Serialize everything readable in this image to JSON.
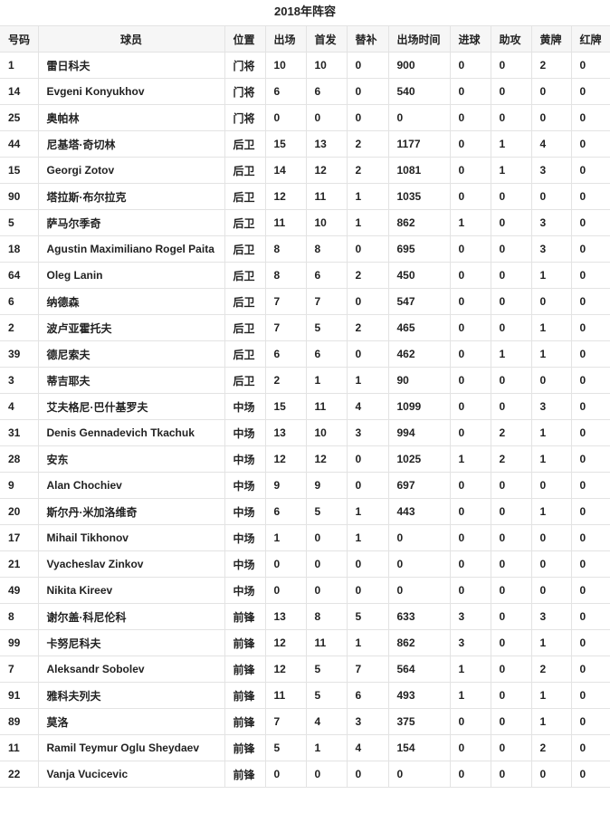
{
  "title": "2018年阵容",
  "columns": [
    "号码",
    "球员",
    "位置",
    "出场",
    "首发",
    "替补",
    "出场时间",
    "进球",
    "助攻",
    "黄牌",
    "红牌"
  ],
  "rows": [
    [
      "1",
      "雷日科夫",
      "门将",
      "10",
      "10",
      "0",
      "900",
      "0",
      "0",
      "2",
      "0"
    ],
    [
      "14",
      "Evgeni Konyukhov",
      "门将",
      "6",
      "6",
      "0",
      "540",
      "0",
      "0",
      "0",
      "0"
    ],
    [
      "25",
      "奥帕林",
      "门将",
      "0",
      "0",
      "0",
      "0",
      "0",
      "0",
      "0",
      "0"
    ],
    [
      "44",
      "尼基塔·奇切林",
      "后卫",
      "15",
      "13",
      "2",
      "1177",
      "0",
      "1",
      "4",
      "0"
    ],
    [
      "15",
      "Georgi Zotov",
      "后卫",
      "14",
      "12",
      "2",
      "1081",
      "0",
      "1",
      "3",
      "0"
    ],
    [
      "90",
      "塔拉斯·布尔拉克",
      "后卫",
      "12",
      "11",
      "1",
      "1035",
      "0",
      "0",
      "0",
      "0"
    ],
    [
      "5",
      "萨马尔季奇",
      "后卫",
      "11",
      "10",
      "1",
      "862",
      "1",
      "0",
      "3",
      "0"
    ],
    [
      "18",
      "Agustin Maximiliano Rogel Paita",
      "后卫",
      "8",
      "8",
      "0",
      "695",
      "0",
      "0",
      "3",
      "0"
    ],
    [
      "64",
      "Oleg Lanin",
      "后卫",
      "8",
      "6",
      "2",
      "450",
      "0",
      "0",
      "1",
      "0"
    ],
    [
      "6",
      "纳德森",
      "后卫",
      "7",
      "7",
      "0",
      "547",
      "0",
      "0",
      "0",
      "0"
    ],
    [
      "2",
      "波卢亚霍托夫",
      "后卫",
      "7",
      "5",
      "2",
      "465",
      "0",
      "0",
      "1",
      "0"
    ],
    [
      "39",
      "德尼索夫",
      "后卫",
      "6",
      "6",
      "0",
      "462",
      "0",
      "1",
      "1",
      "0"
    ],
    [
      "3",
      "蒂吉耶夫",
      "后卫",
      "2",
      "1",
      "1",
      "90",
      "0",
      "0",
      "0",
      "0"
    ],
    [
      "4",
      "艾夫格尼·巴什基罗夫",
      "中场",
      "15",
      "11",
      "4",
      "1099",
      "0",
      "0",
      "3",
      "0"
    ],
    [
      "31",
      "Denis Gennadevich Tkachuk",
      "中场",
      "13",
      "10",
      "3",
      "994",
      "0",
      "2",
      "1",
      "0"
    ],
    [
      "28",
      "安东",
      "中场",
      "12",
      "12",
      "0",
      "1025",
      "1",
      "2",
      "1",
      "0"
    ],
    [
      "9",
      "Alan Chochiev",
      "中场",
      "9",
      "9",
      "0",
      "697",
      "0",
      "0",
      "0",
      "0"
    ],
    [
      "20",
      "斯尔丹·米加洛维奇",
      "中场",
      "6",
      "5",
      "1",
      "443",
      "0",
      "0",
      "1",
      "0"
    ],
    [
      "17",
      "Mihail Tikhonov",
      "中场",
      "1",
      "0",
      "1",
      "0",
      "0",
      "0",
      "0",
      "0"
    ],
    [
      "21",
      "Vyacheslav Zinkov",
      "中场",
      "0",
      "0",
      "0",
      "0",
      "0",
      "0",
      "0",
      "0"
    ],
    [
      "49",
      "Nikita Kireev",
      "中场",
      "0",
      "0",
      "0",
      "0",
      "0",
      "0",
      "0",
      "0"
    ],
    [
      "8",
      "谢尔盖·科尼伦科",
      "前锋",
      "13",
      "8",
      "5",
      "633",
      "3",
      "0",
      "3",
      "0"
    ],
    [
      "99",
      "卡努尼科夫",
      "前锋",
      "12",
      "11",
      "1",
      "862",
      "3",
      "0",
      "1",
      "0"
    ],
    [
      "7",
      "Aleksandr Sobolev",
      "前锋",
      "12",
      "5",
      "7",
      "564",
      "1",
      "0",
      "2",
      "0"
    ],
    [
      "91",
      "雅科夫列夫",
      "前锋",
      "11",
      "5",
      "6",
      "493",
      "1",
      "0",
      "1",
      "0"
    ],
    [
      "89",
      "莫洛",
      "前锋",
      "7",
      "4",
      "3",
      "375",
      "0",
      "0",
      "1",
      "0"
    ],
    [
      "11",
      "Ramil Teymur Oglu Sheydaev",
      "前锋",
      "5",
      "1",
      "4",
      "154",
      "0",
      "0",
      "2",
      "0"
    ],
    [
      "22",
      "Vanja Vucicevic",
      "前锋",
      "0",
      "0",
      "0",
      "0",
      "0",
      "0",
      "0",
      "0"
    ]
  ]
}
